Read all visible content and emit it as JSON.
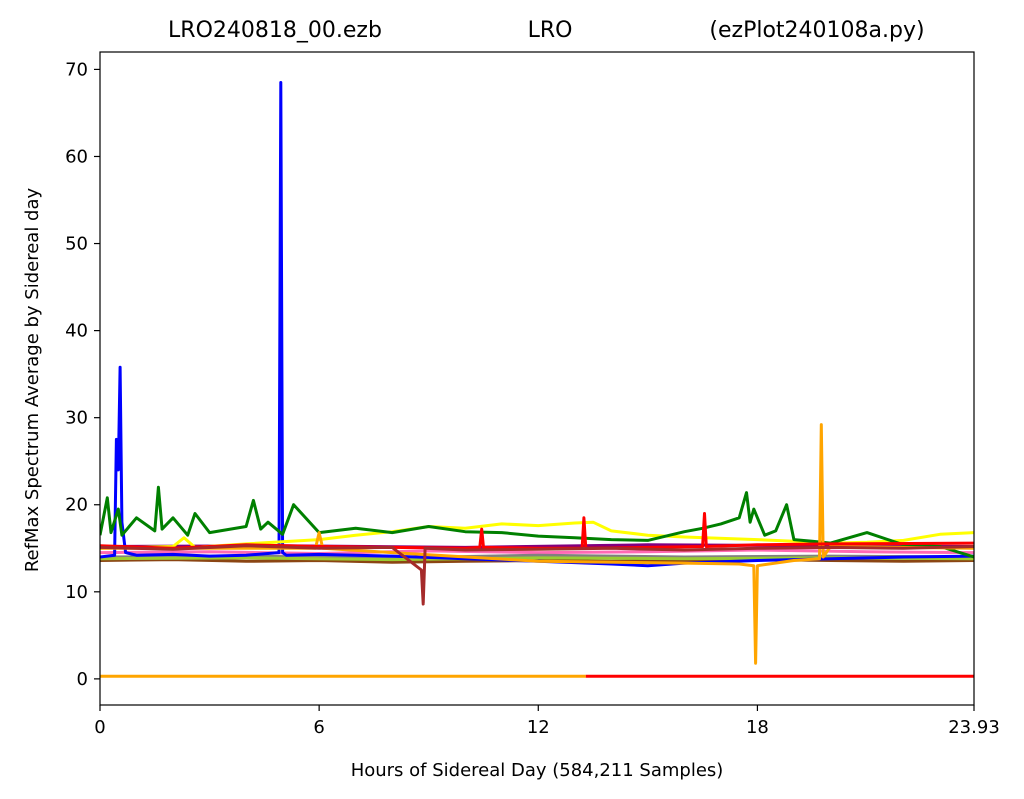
{
  "chart_data": {
    "type": "line",
    "title_parts": [
      "LRO240818_00.ezb",
      "LRO",
      "(ezPlot240108a.py)"
    ],
    "xlabel": "Hours of Sidereal Day  (584,211 Samples)",
    "ylabel": "RefMax Spectrum Average by Sidereal day",
    "xlim": [
      0,
      23.93
    ],
    "ylim": [
      -3,
      72
    ],
    "xticks": [
      0,
      6,
      12,
      18,
      23.93
    ],
    "xtick_labels": [
      "0",
      "6",
      "12",
      "18",
      "23.93"
    ],
    "yticks": [
      0,
      10,
      20,
      30,
      40,
      50,
      60,
      70
    ],
    "ytick_labels": [
      "0",
      "10",
      "20",
      "30",
      "40",
      "50",
      "60",
      "70"
    ],
    "grid": false,
    "series": [
      {
        "color": "#8b4513",
        "x": [
          0,
          2,
          4,
          6,
          8,
          10,
          12,
          14,
          16,
          18,
          20,
          22,
          23.93
        ],
        "y": [
          13.6,
          13.7,
          13.5,
          13.6,
          13.4,
          13.5,
          13.6,
          13.5,
          13.6,
          13.7,
          13.6,
          13.5,
          13.6
        ]
      },
      {
        "color": "#ff69b4",
        "x": [
          0,
          3,
          6,
          9,
          12,
          15,
          18,
          21,
          23.93
        ],
        "y": [
          14.5,
          14.6,
          14.4,
          14.7,
          14.5,
          14.6,
          14.8,
          14.6,
          14.5
        ]
      },
      {
        "color": "#808080",
        "x": [
          0,
          4,
          8,
          12,
          16,
          20,
          23.93
        ],
        "y": [
          14.0,
          14.1,
          13.9,
          14.2,
          14.0,
          14.1,
          14.0
        ]
      },
      {
        "color": "#9acd32",
        "x": [
          0,
          4,
          8,
          12,
          16,
          20,
          23.93
        ],
        "y": [
          13.8,
          13.9,
          13.7,
          13.9,
          13.8,
          13.9,
          13.8
        ]
      },
      {
        "color": "#800080",
        "x": [
          0,
          5,
          10,
          15,
          20,
          23.93
        ],
        "y": [
          15.2,
          15.3,
          15.1,
          15.4,
          15.3,
          15.2
        ]
      },
      {
        "color": "#0000ff",
        "x": [
          0,
          0.4,
          0.45,
          0.5,
          0.55,
          0.6,
          0.7,
          1,
          2,
          3,
          4,
          4.9,
          4.95,
          5.0,
          5.1,
          6,
          8,
          10,
          12,
          14,
          15,
          16,
          18,
          20,
          22,
          23.93
        ],
        "y": [
          14,
          14.2,
          27.5,
          24,
          35.8,
          18,
          14.5,
          14.2,
          14.3,
          14.1,
          14.2,
          14.5,
          68.5,
          14.5,
          14.2,
          14.3,
          14.1,
          13.8,
          13.5,
          13.2,
          13.0,
          13.3,
          13.6,
          13.8,
          14.0,
          14.1
        ]
      },
      {
        "color": "#ffff00",
        "x": [
          0,
          2,
          2.3,
          2.6,
          4,
          6,
          7,
          8,
          9,
          10,
          11,
          12,
          13,
          13.5,
          14,
          15,
          16,
          18,
          19,
          20,
          21,
          22,
          23,
          23.93
        ],
        "y": [
          15.0,
          15.2,
          16.2,
          15.1,
          15.5,
          16.0,
          16.5,
          16.9,
          17.5,
          17.3,
          17.8,
          17.6,
          17.9,
          18.0,
          17.0,
          16.5,
          16.3,
          16.0,
          15.8,
          15.6,
          15.7,
          15.9,
          16.6,
          16.8
        ]
      },
      {
        "color": "#008000",
        "x": [
          0,
          0.2,
          0.3,
          0.5,
          0.6,
          1,
          1.5,
          1.6,
          1.7,
          2,
          2.4,
          2.6,
          3,
          4,
          4.2,
          4.4,
          4.6,
          5,
          5.3,
          6,
          7,
          8,
          9,
          10,
          11,
          12,
          13,
          14,
          15,
          16,
          16.5,
          17,
          17.5,
          17.7,
          17.8,
          17.9,
          18.2,
          18.5,
          18.8,
          19,
          19.5,
          20,
          21,
          22,
          23,
          23.93
        ],
        "y": [
          16.5,
          20.8,
          16.8,
          19.5,
          16.5,
          18.5,
          17.0,
          22.0,
          17.2,
          18.5,
          16.5,
          19.0,
          16.8,
          17.5,
          20.5,
          17.2,
          18.0,
          16.6,
          20.0,
          16.8,
          17.3,
          16.8,
          17.5,
          16.9,
          16.8,
          16.4,
          16.2,
          16.0,
          15.9,
          16.9,
          17.3,
          17.8,
          18.5,
          21.4,
          18.0,
          19.5,
          16.5,
          17.0,
          20.0,
          16.0,
          15.8,
          15.6,
          16.8,
          15.4,
          15.2,
          14.0
        ]
      },
      {
        "color": "#ffa500",
        "x": [
          0,
          5.9,
          6.0,
          6.1,
          8,
          12,
          16,
          17.5,
          17.9,
          17.95,
          18.0,
          19,
          19.7,
          19.75,
          19.8,
          20,
          23.93
        ],
        "y": [
          15.0,
          15.0,
          16.8,
          15.0,
          14.5,
          13.5,
          13.3,
          13.2,
          13.0,
          1.8,
          13.0,
          13.6,
          13.8,
          29.2,
          14.0,
          15.2,
          15.0
        ]
      },
      {
        "color": "#ff0000",
        "x": [
          0,
          2,
          4,
          6,
          8,
          10,
          10.4,
          10.45,
          10.5,
          12,
          13.2,
          13.25,
          13.3,
          15,
          16.5,
          16.55,
          16.6,
          18,
          20,
          23.93
        ],
        "y": [
          15.3,
          15.0,
          15.4,
          15.2,
          15.1,
          15.0,
          15.1,
          17.2,
          15.1,
          15.0,
          15.0,
          18.5,
          15.0,
          15.1,
          15.2,
          19.0,
          15.2,
          15.4,
          15.5,
          15.6
        ]
      },
      {
        "color": "#a52a2a",
        "x": [
          0,
          2,
          4,
          6,
          8,
          8.8,
          8.85,
          8.9,
          10,
          12,
          14,
          16,
          18,
          20,
          22,
          23.93
        ],
        "y": [
          15.1,
          14.9,
          15.3,
          15.0,
          15.1,
          12.5,
          8.6,
          15.0,
          14.8,
          14.9,
          15.0,
          14.8,
          15.0,
          15.1,
          15.0,
          15.2
        ]
      },
      {
        "color": "#ffa500",
        "x": [
          0,
          13.3
        ],
        "y": [
          0.3,
          0.3
        ]
      },
      {
        "color": "#ff0000",
        "x": [
          13.3,
          23.93
        ],
        "y": [
          0.3,
          0.3
        ]
      }
    ]
  }
}
